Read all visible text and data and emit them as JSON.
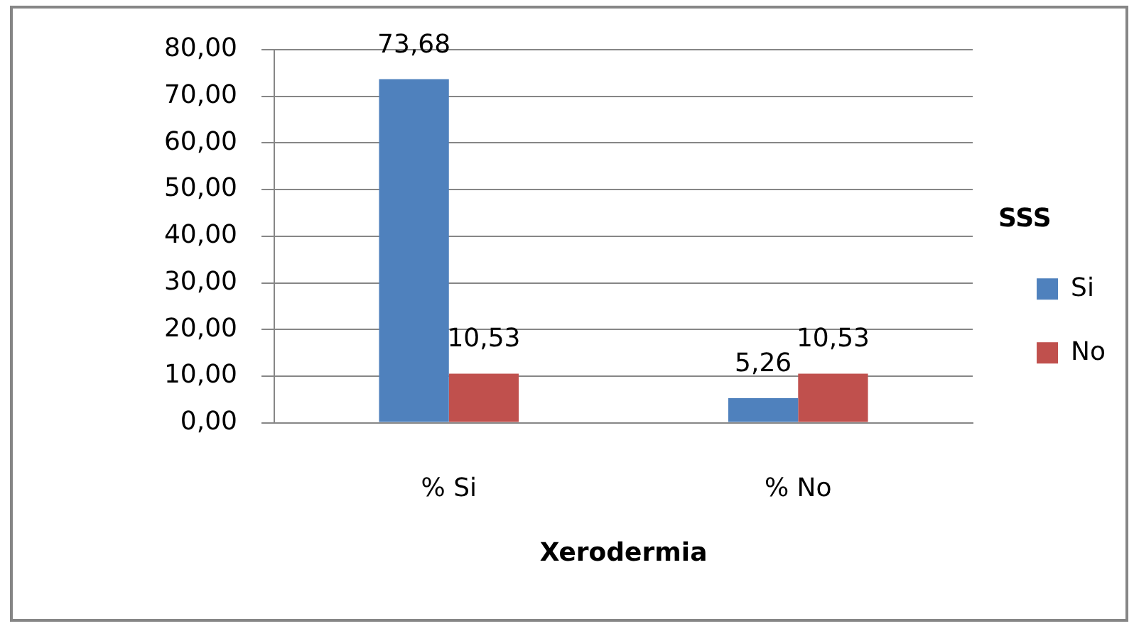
{
  "chart_data": {
    "type": "bar",
    "xlabel": "Xerodermia",
    "legend_title": "SSS",
    "categories": [
      "% Si",
      "% No"
    ],
    "series": [
      {
        "name": "Si",
        "color": "#4f81bd",
        "values": [
          73.68,
          5.26
        ],
        "value_labels": [
          "73,68",
          "5,26"
        ]
      },
      {
        "name": "No",
        "color": "#c0504d",
        "values": [
          10.53,
          10.53
        ],
        "value_labels": [
          "10,53",
          "10,53"
        ]
      }
    ],
    "ylim": [
      0,
      80
    ],
    "yticks": [
      {
        "value": 0,
        "label": "0,00"
      },
      {
        "value": 10,
        "label": "10,00"
      },
      {
        "value": 20,
        "label": "20,00"
      },
      {
        "value": 30,
        "label": "30,00"
      },
      {
        "value": 40,
        "label": "40,00"
      },
      {
        "value": 50,
        "label": "50,00"
      },
      {
        "value": 60,
        "label": "60,00"
      },
      {
        "value": 70,
        "label": "70,00"
      },
      {
        "value": 80,
        "label": "80,00"
      }
    ],
    "grid": "y",
    "legend": "right"
  }
}
